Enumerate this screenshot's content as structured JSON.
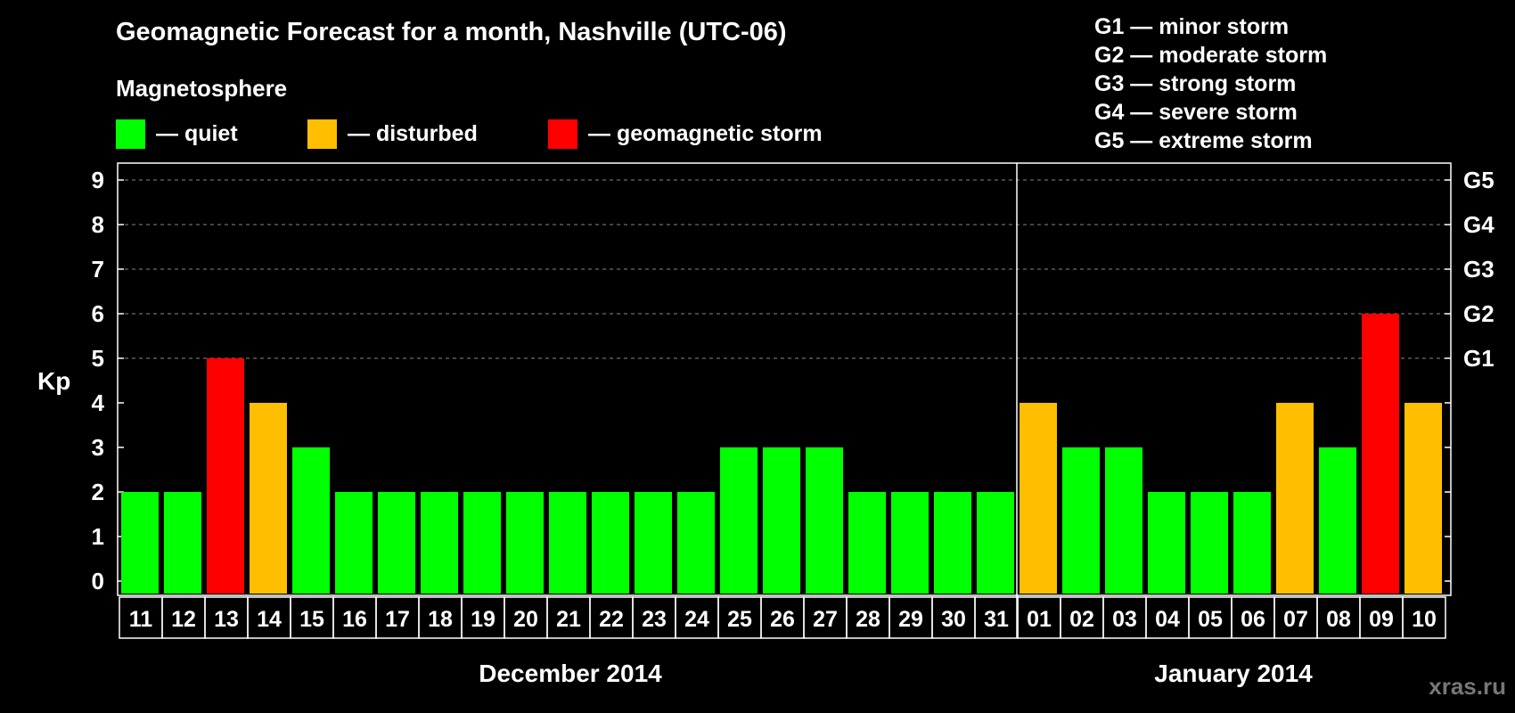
{
  "title": "Geomagnetic Forecast for a month, Nashville (UTC-06)",
  "subtitle": "Magnetosphere",
  "legend": [
    {
      "label": "— quiet",
      "color": "#00ff00"
    },
    {
      "label": "— disturbed",
      "color": "#ffbf00"
    },
    {
      "label": "— geomagnetic storm",
      "color": "#ff0000"
    }
  ],
  "storm_scale": [
    "G1 — minor storm",
    "G2 — moderate storm",
    "G3 — strong storm",
    "G4 — severe storm",
    "G5 — extreme storm"
  ],
  "watermark": "xras.ru",
  "colors": {
    "quiet": "#00ff00",
    "disturbed": "#ffbf00",
    "storm": "#ff0000"
  },
  "chart_data": {
    "type": "bar",
    "ylabel": "Kp",
    "ylim": [
      0,
      9
    ],
    "yticks": [
      0,
      1,
      2,
      3,
      4,
      5,
      6,
      7,
      8,
      9
    ],
    "right_axis_labels": [
      {
        "kp": 5,
        "label": "G1"
      },
      {
        "kp": 6,
        "label": "G2"
      },
      {
        "kp": 7,
        "label": "G3"
      },
      {
        "kp": 8,
        "label": "G4"
      },
      {
        "kp": 9,
        "label": "G5"
      }
    ],
    "grid": "dashed horizontal at Kp 5-9",
    "categories": [
      "11",
      "12",
      "13",
      "14",
      "15",
      "16",
      "17",
      "18",
      "19",
      "20",
      "21",
      "22",
      "23",
      "24",
      "25",
      "26",
      "27",
      "28",
      "29",
      "30",
      "31",
      "01",
      "02",
      "03",
      "04",
      "05",
      "06",
      "07",
      "08",
      "09",
      "10"
    ],
    "values": [
      2,
      2,
      5,
      4,
      3,
      2,
      2,
      2,
      2,
      2,
      2,
      2,
      2,
      2,
      3,
      3,
      3,
      2,
      2,
      2,
      2,
      4,
      3,
      3,
      2,
      2,
      2,
      4,
      3,
      6,
      4
    ],
    "status": [
      "quiet",
      "quiet",
      "storm",
      "disturbed",
      "quiet",
      "quiet",
      "quiet",
      "quiet",
      "quiet",
      "quiet",
      "quiet",
      "quiet",
      "quiet",
      "quiet",
      "quiet",
      "quiet",
      "quiet",
      "quiet",
      "quiet",
      "quiet",
      "quiet",
      "disturbed",
      "quiet",
      "quiet",
      "quiet",
      "quiet",
      "quiet",
      "disturbed",
      "quiet",
      "storm",
      "disturbed"
    ],
    "months": [
      {
        "label": "December 2014",
        "start_index": 0,
        "end_index": 20
      },
      {
        "label": "January 2014",
        "start_index": 21,
        "end_index": 30
      }
    ]
  }
}
